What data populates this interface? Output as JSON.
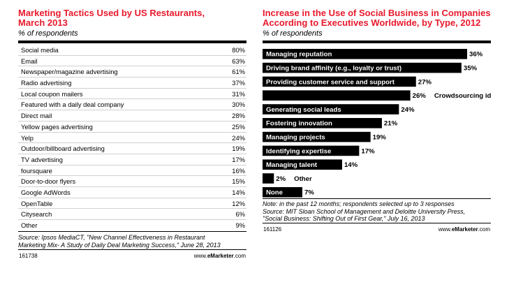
{
  "left_panel": {
    "title_line1": "Marketing Tactics Used by US Restaurants,",
    "title_line2": "March 2013",
    "subtitle": "% of respondents",
    "rows": [
      {
        "label": "Social media",
        "value": "80%"
      },
      {
        "label": "Email",
        "value": "63%"
      },
      {
        "label": "Newspaper/magazine advertising",
        "value": "61%"
      },
      {
        "label": "Radio advertising",
        "value": "37%"
      },
      {
        "label": "Local coupon mailers",
        "value": "31%"
      },
      {
        "label": "Featured with a daily deal company",
        "value": "30%"
      },
      {
        "label": "Direct mail",
        "value": "28%"
      },
      {
        "label": "Yellow pages advertising",
        "value": "25%"
      },
      {
        "label": "Yelp",
        "value": "24%"
      },
      {
        "label": "Outdoor/billboard advertising",
        "value": "19%"
      },
      {
        "label": "TV advertising",
        "value": "17%"
      },
      {
        "label": "foursquare",
        "value": "16%"
      },
      {
        "label": "Door-to-door flyers",
        "value": "15%"
      },
      {
        "label": "Google AdWords",
        "value": "14%"
      },
      {
        "label": "OpenTable",
        "value": "12%"
      },
      {
        "label": "Citysearch",
        "value": "6%"
      },
      {
        "label": "Other",
        "value": "9%"
      }
    ],
    "source_line1": "Source: Ipsos MediaCT, \"New Channel Effectiveness in Restaurant",
    "source_line2": "Marketing Mix- A Study of Daily Deal Marketing Success,\" June 28, 2013",
    "chart_id": "161738",
    "brand_prefix": "www.",
    "brand_bold": "eMarketer",
    "brand_suffix": ".com"
  },
  "right_panel": {
    "title_line1": "Increase in the Use of Social Business in Companies",
    "title_line2": "According to Executives Worldwide, by Type, 2012",
    "subtitle": "% of respondents",
    "note_line1": "Note: in the past 12 months; respondents selected up to 3 responses",
    "note_line2": "Source: MIT Sloan School of Management and Deloitte University Press,",
    "note_line3": "\"Social Business: Shifting Out of First Gear,\" July 16, 2013",
    "chart_id": "161126",
    "brand_prefix": "www.",
    "brand_bold": "eMarketer",
    "brand_suffix": ".com"
  },
  "chart_data": [
    {
      "type": "table",
      "title": "Marketing Tactics Used by US Restaurants, March 2013",
      "subtitle": "% of respondents",
      "categories": [
        "Social media",
        "Email",
        "Newspaper/magazine advertising",
        "Radio advertising",
        "Local coupon mailers",
        "Featured with a daily deal company",
        "Direct mail",
        "Yellow pages advertising",
        "Yelp",
        "Outdoor/billboard advertising",
        "TV advertising",
        "foursquare",
        "Door-to-door flyers",
        "Google AdWords",
        "OpenTable",
        "Citysearch",
        "Other"
      ],
      "values": [
        80,
        63,
        61,
        37,
        31,
        30,
        28,
        25,
        24,
        19,
        17,
        16,
        15,
        14,
        12,
        6,
        9
      ]
    },
    {
      "type": "bar",
      "orientation": "horizontal",
      "title": "Increase in the Use of Social Business in Companies According to Executives Worldwide, by Type, 2012",
      "subtitle": "% of respondents",
      "categories": [
        "Managing reputation",
        "Driving brand affinity (e.g., loyalty or trust)",
        "Providing customer service and support",
        "Crowdsourcing ideas and sharing knowledge",
        "Generating social leads",
        "Fostering innovation",
        "Managing projects",
        "Identifying expertise",
        "Managing talent",
        "Other",
        "None"
      ],
      "values": [
        36,
        35,
        27,
        26,
        24,
        21,
        19,
        17,
        14,
        2,
        7
      ],
      "value_labels": [
        "36%",
        "35%",
        "27%",
        "26%",
        "24%",
        "21%",
        "19%",
        "17%",
        "14%",
        "2%",
        "7%"
      ],
      "xlim": [
        0,
        36
      ],
      "grid": false,
      "legend": "none"
    }
  ]
}
